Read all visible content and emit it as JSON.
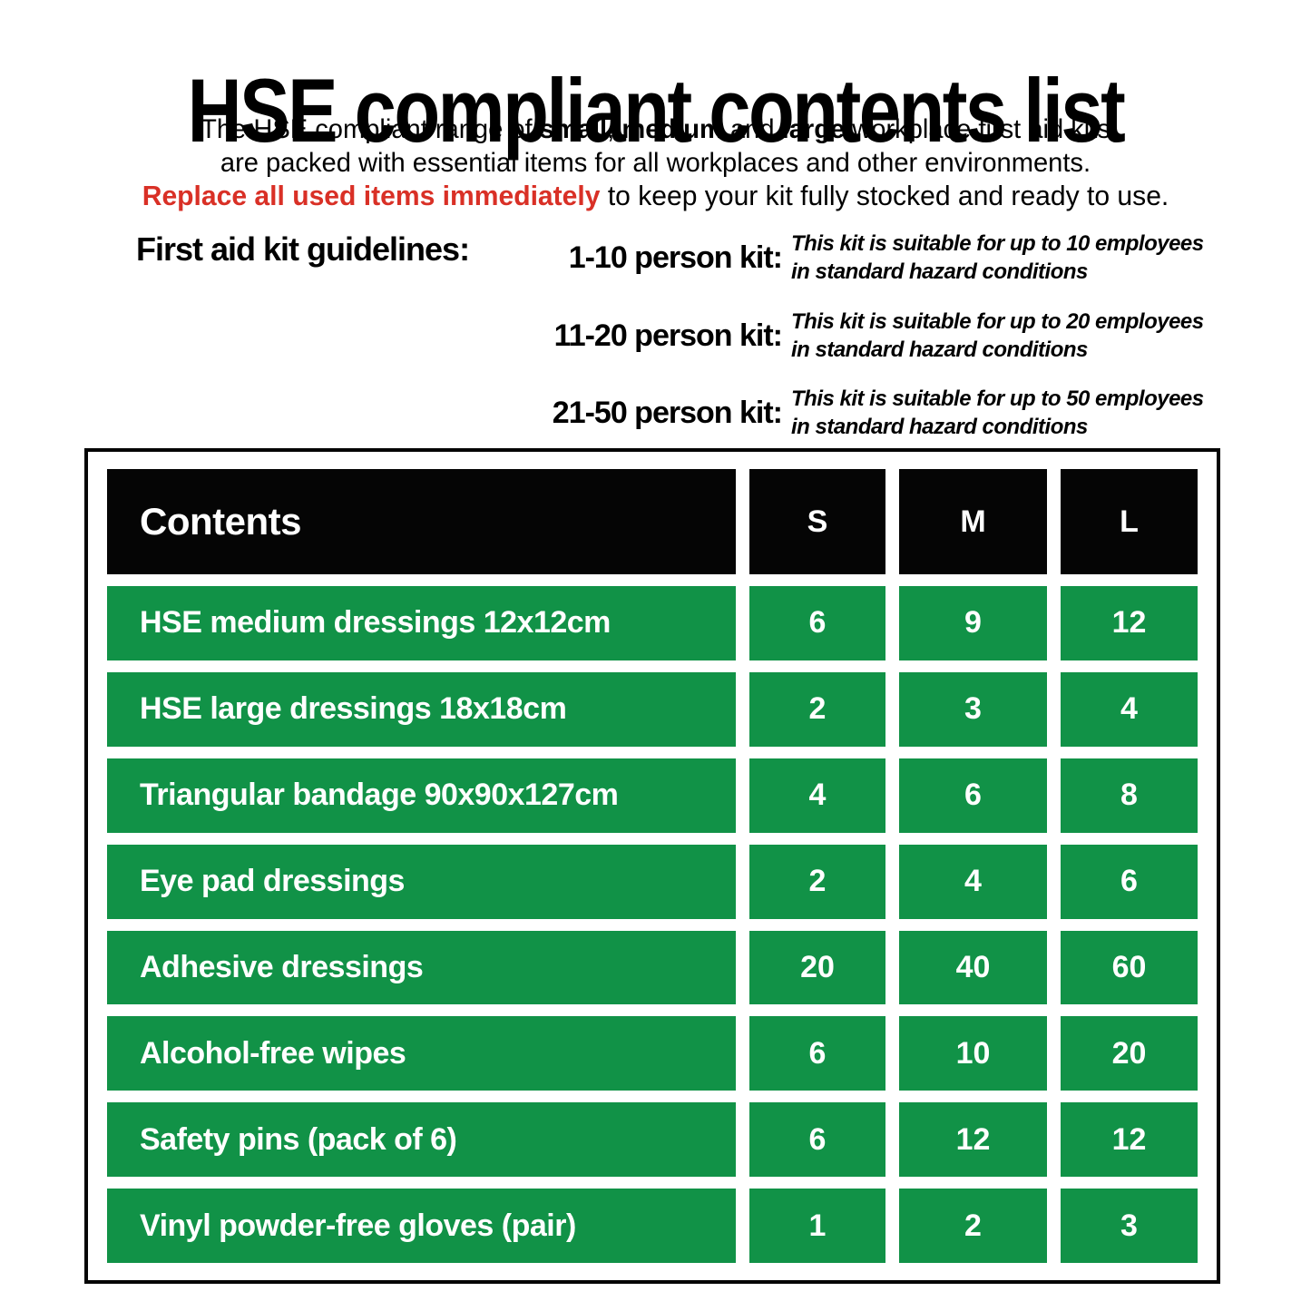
{
  "colors": {
    "green": "#119247",
    "red": "#D93026",
    "black": "#050505"
  },
  "header": {
    "title": "HSE compliant contents list",
    "intro": {
      "part1": "The HSE compliant range of ",
      "bold1": "small",
      "part2": ", ",
      "bold2": "medium",
      "part3": " and ",
      "bold3": "large",
      "part4": " workplace first aid kits",
      "line2": "are packed with essential items for all workplaces and other environments."
    },
    "replace_note": {
      "bold_red": "Replace all used items immediately",
      "rest": " to keep your kit fully stocked and ready to use."
    }
  },
  "guidelines": {
    "heading": "First aid kit guidelines:",
    "entries": [
      {
        "label": "1-10 person kit:",
        "note_line1": "This kit is suitable for up to 10 employees",
        "note_line2": "in standard hazard conditions"
      },
      {
        "label": "11-20 person kit:",
        "note_line1": "This kit is suitable for up to 20 employees",
        "note_line2": "in standard hazard conditions"
      },
      {
        "label": "21-50 person kit:",
        "note_line1": "This kit is suitable for up to 50 employees",
        "note_line2": "in standard hazard conditions"
      }
    ]
  },
  "table": {
    "header": {
      "contents": "Contents",
      "sizes": [
        "S",
        "M",
        "L"
      ]
    },
    "rows": [
      {
        "item": "HSE medium dressings 12x12cm",
        "s": "6",
        "m": "9",
        "l": "12"
      },
      {
        "item": "HSE large dressings 18x18cm",
        "s": "2",
        "m": "3",
        "l": "4"
      },
      {
        "item": "Triangular bandage 90x90x127cm",
        "s": "4",
        "m": "6",
        "l": "8"
      },
      {
        "item": "Eye pad dressings",
        "s": "2",
        "m": "4",
        "l": "6"
      },
      {
        "item": "Adhesive dressings",
        "s": "20",
        "m": "40",
        "l": "60"
      },
      {
        "item": "Alcohol-free wipes",
        "s": "6",
        "m": "10",
        "l": "20"
      },
      {
        "item": "Safety pins (pack of 6)",
        "s": "6",
        "m": "12",
        "l": "12"
      },
      {
        "item": "Vinyl powder-free gloves (pair)",
        "s": "1",
        "m": "2",
        "l": "3"
      }
    ]
  }
}
